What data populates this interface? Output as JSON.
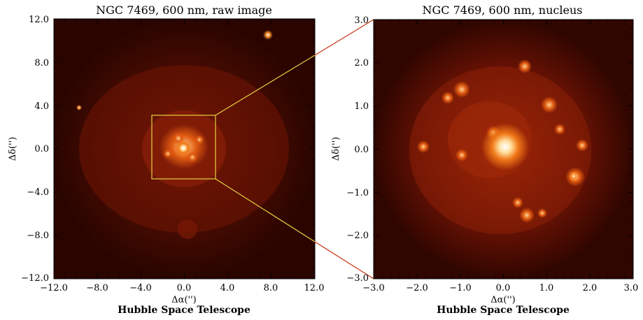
{
  "panels": [
    {
      "title": "NGC 7469, 600 nm, raw image",
      "x_ticks": [
        "−12.0",
        "−8.0",
        "−4.0",
        "0.0",
        "4.0",
        "8.0",
        "12.0"
      ],
      "y_ticks": [
        "12.0",
        "8.0",
        "4.0",
        "0.0",
        "−4.0",
        "−8.0",
        "−12.0"
      ],
      "xlabel": "Δα('')",
      "ylabel": "Δδ('')",
      "credit": "Hubble Space Telescope"
    },
    {
      "title": "NGC 7469, 600 nm, nucleus",
      "x_ticks": [
        "−3.0",
        "−2.0",
        "−1.0",
        "0.0",
        "1.0",
        "2.0",
        "3.0"
      ],
      "y_ticks": [
        "3.0",
        "2.0",
        "1.0",
        "0.0",
        "−1.0",
        "−2.0",
        "−3.0"
      ],
      "xlabel": "Δα('')",
      "ylabel": "Δδ('')",
      "credit": "Hubble Space Telescope"
    }
  ],
  "colors": {
    "zoom_box": "#e8d040",
    "connector": "#c83010",
    "image_base": "#2a0500"
  }
}
